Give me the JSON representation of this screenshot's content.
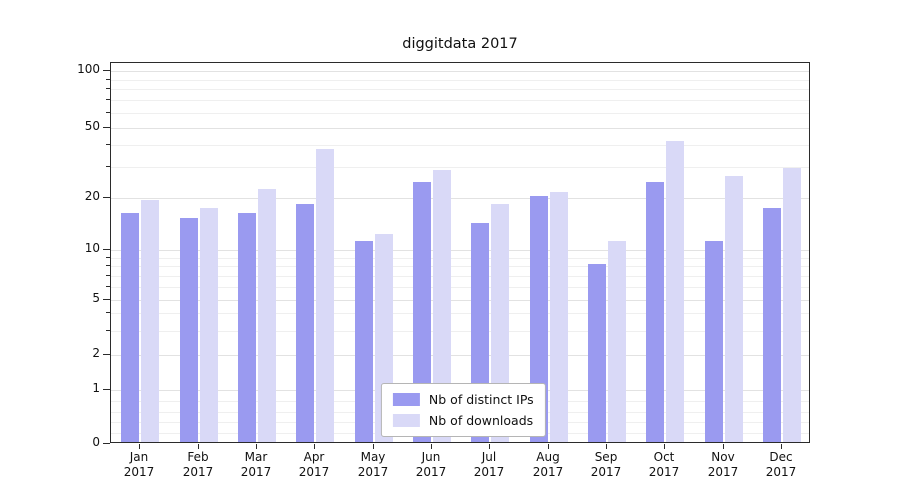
{
  "chart_data": {
    "type": "bar",
    "title": "diggitdata 2017",
    "categories": [
      "Jan",
      "Feb",
      "Mar",
      "Apr",
      "May",
      "Jun",
      "Jul",
      "Aug",
      "Sep",
      "Oct",
      "Nov",
      "Dec"
    ],
    "tick_year": "2017",
    "series": [
      {
        "name": "Nb of distinct IPs",
        "color": "#9a9af0",
        "values": [
          16,
          15,
          16,
          18,
          11,
          24,
          14,
          20,
          8,
          24,
          11,
          17
        ]
      },
      {
        "name": "Nb of downloads",
        "color": "#d9d9f7",
        "values": [
          19,
          17,
          22,
          37,
          12,
          28,
          18,
          21,
          11,
          41,
          26,
          29
        ]
      }
    ],
    "yscale": "symlog",
    "yticks": [
      0,
      1,
      2,
      5,
      10,
      20,
      50,
      100
    ],
    "ylim": [
      0,
      110
    ],
    "grid": true,
    "legend_position": "lower center"
  },
  "colors": {
    "grid_major": "#e2e2e2",
    "grid_minor": "#efefef",
    "axis": "#2b2b2b",
    "background": "#ffffff"
  }
}
